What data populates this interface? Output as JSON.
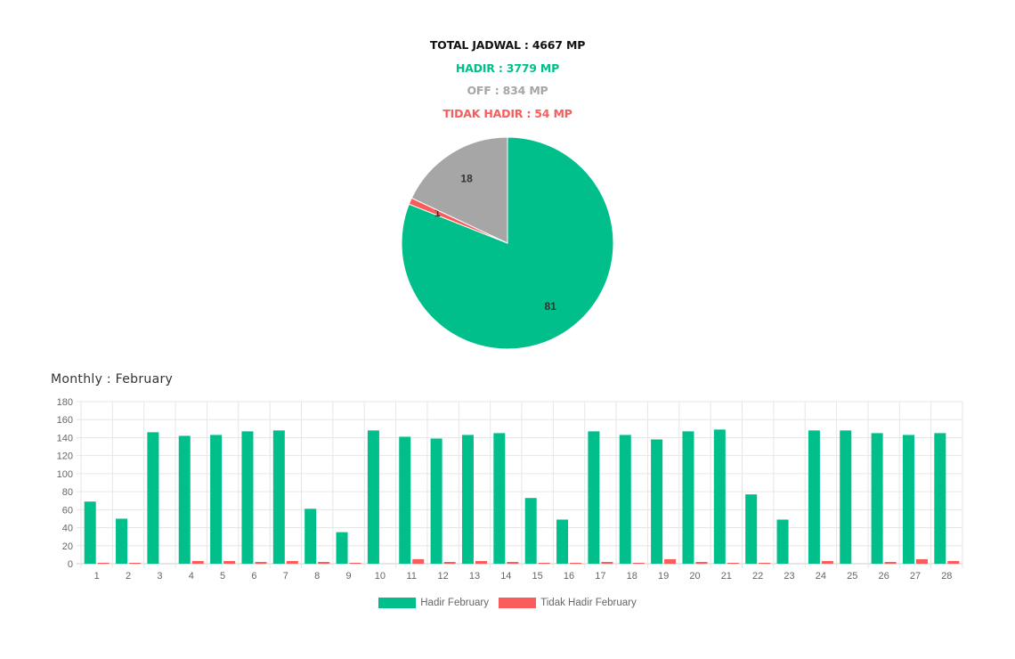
{
  "summary": {
    "total": "TOTAL JADWAL : 4667 MP",
    "hadir": "HADIR : 3779 MP",
    "off": "OFF : 834 MP",
    "tidak_hadir": "TIDAK HADIR : 54 MP"
  },
  "colors": {
    "black": "#111111",
    "hadir": "#00bf8a",
    "off": "#a6a6a6",
    "tidak_hadir": "#fa5c5c",
    "grid": "#e6e6e6",
    "axis_text": "#666666"
  },
  "chart_data": [
    {
      "type": "pie",
      "labels": [
        "",
        "",
        ""
      ],
      "values": [
        81,
        1,
        18
      ],
      "data_labels": [
        "81",
        "1",
        "18"
      ],
      "colors": [
        "#00bf8a",
        "#fa5c5c",
        "#a6a6a6"
      ],
      "start_angle_deg": 0,
      "direction": "clockwise"
    },
    {
      "type": "bar",
      "title": "Monthly : February",
      "categories": [
        "1",
        "2",
        "3",
        "4",
        "5",
        "6",
        "7",
        "8",
        "9",
        "10",
        "11",
        "12",
        "13",
        "14",
        "15",
        "16",
        "17",
        "18",
        "19",
        "20",
        "21",
        "22",
        "23",
        "24",
        "25",
        "26",
        "27",
        "28"
      ],
      "series": [
        {
          "name": "Hadir February",
          "color": "#00bf8a",
          "values": [
            69,
            50,
            146,
            142,
            143,
            147,
            148,
            61,
            35,
            148,
            141,
            139,
            143,
            145,
            73,
            49,
            147,
            143,
            138,
            147,
            149,
            77,
            49,
            148,
            148,
            145,
            143,
            145
          ]
        },
        {
          "name": "Tidak Hadir February",
          "color": "#fa5c5c",
          "values": [
            1,
            1,
            0,
            3,
            3,
            2,
            3,
            2,
            1,
            0,
            5,
            2,
            3,
            2,
            1,
            1,
            2,
            1,
            5,
            2,
            1,
            1,
            0,
            3,
            0,
            2,
            5,
            3
          ]
        }
      ],
      "ylim": [
        0,
        180
      ],
      "yticks": [
        0,
        20,
        40,
        60,
        80,
        100,
        120,
        140,
        160,
        180
      ],
      "grid": true,
      "legend_position": "bottom"
    }
  ]
}
